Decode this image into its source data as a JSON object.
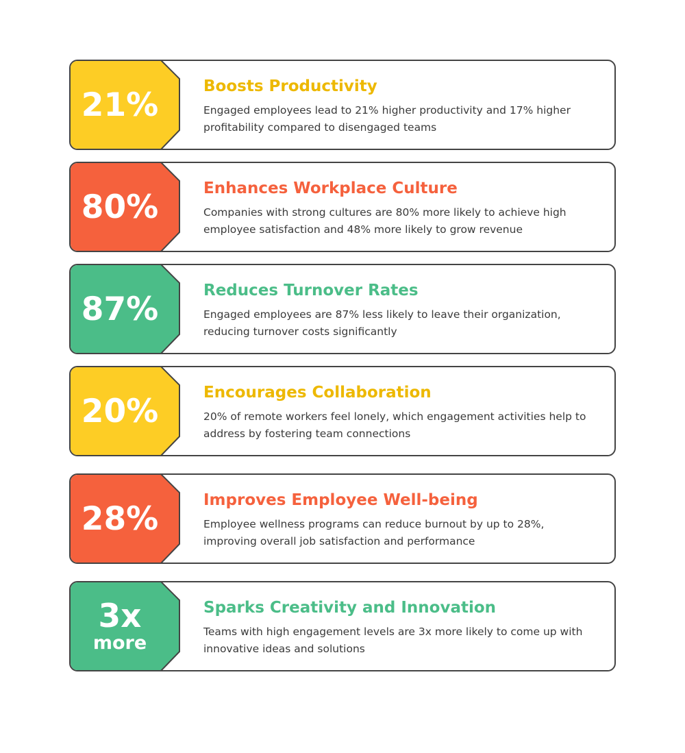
{
  "colors": {
    "yellow": "#FDCD25",
    "yellow_text": "#EDB800",
    "orange": "#F5613D",
    "green": "#4BBD88",
    "border": "#444444"
  },
  "items": [
    {
      "stat": "21%",
      "stat_sub": "",
      "title": "Boosts Productivity",
      "description": "Engaged employees lead to 21% higher productivity and 17% higher profitability compared to disengaged teams",
      "color": "yellow"
    },
    {
      "stat": "80%",
      "stat_sub": "",
      "title": "Enhances Workplace Culture",
      "description": "Companies with strong cultures are 80% more likely to achieve high employee satisfaction and 48% more likely to grow revenue",
      "color": "orange"
    },
    {
      "stat": "87%",
      "stat_sub": "",
      "title": "Reduces Turnover Rates",
      "description": "Engaged employees are 87% less likely to leave their organization, reducing turnover costs significantly",
      "color": "green"
    },
    {
      "stat": "20%",
      "stat_sub": "",
      "title": "Encourages Collaboration",
      "description": "20% of remote workers feel lonely, which engagement activities help to address by fostering team connections",
      "color": "yellow"
    },
    {
      "stat": "28%",
      "stat_sub": "",
      "title": "Improves Employee Well-being",
      "description": "Employee wellness programs can reduce burnout by up to 28%, improving overall job satisfaction and performance",
      "color": "orange"
    },
    {
      "stat": "3x",
      "stat_sub": "more",
      "title": "Sparks Creativity and Innovation",
      "description": "Teams with high engagement levels are 3x more likely to come up with innovative ideas and solutions",
      "color": "green"
    }
  ]
}
